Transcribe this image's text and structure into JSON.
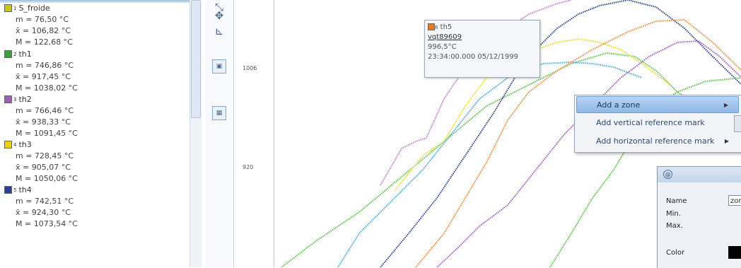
{
  "legend": {
    "channels": [
      {
        "num": "1",
        "name": "S_froide",
        "color": "#c8c800",
        "min": "m  = 76,50 °C",
        "avg": "x̄  = 106,82 °C",
        "max": "M  = 122,68 °C"
      },
      {
        "num": "2",
        "name": "th1",
        "color": "#3aa03a",
        "min": "m  = 746,86 °C",
        "avg": "x̄  = 917,45 °C",
        "max": "M  = 1038,02 °C"
      },
      {
        "num": "3",
        "name": "th2",
        "color": "#a060b0",
        "min": "m  = 766,46 °C",
        "avg": "x̄  = 938,33 °C",
        "max": "M  = 1091,45 °C"
      },
      {
        "num": "4",
        "name": "th3",
        "color": "#f0d000",
        "min": "m  = 728,45 °C",
        "avg": "x̄  = 905,07 °C",
        "max": "M  = 1050,06 °C"
      },
      {
        "num": "5",
        "name": "th4",
        "color": "#2a3f8f",
        "min": "m  = 742,51 °C",
        "avg": "x̄  = 924,30 °C",
        "max": "M  = 1073,54 °C"
      }
    ]
  },
  "toolbar": {
    "icons": [
      "zoom-icon",
      "pan-icon",
      "select-region-icon",
      "fit-icon",
      "grid-icon"
    ]
  },
  "yaxis": {
    "ticks": [
      "1006",
      "920"
    ]
  },
  "tooltip": {
    "num": "6",
    "name": "th5",
    "color": "#f07820",
    "tag": "vqt89609",
    "value": "996,5°C",
    "time": "23:34:00.000 05/12/1999"
  },
  "context_menu": {
    "items": [
      {
        "label": "Add a zone",
        "has_submenu": true,
        "selected": true
      },
      {
        "label": "Add vertical reference mark",
        "has_submenu": false,
        "selected": false
      },
      {
        "label": "Add horizontal reference mark",
        "has_submenu": true,
        "selected": false
      }
    ]
  },
  "zone_dialog": {
    "name_label": "Name",
    "name_value": "zone",
    "min_label": "Min.",
    "max_label": "Max.",
    "color_label": "Color"
  },
  "series_colors": {
    "th1": "#5cbf4c",
    "th2": "#a259c0",
    "th3": "#f2dc2a",
    "th4": "#2b3f8f",
    "th5": "#f08a3a",
    "extra_a": "#4aa8e0",
    "extra_b": "#c080d0"
  }
}
